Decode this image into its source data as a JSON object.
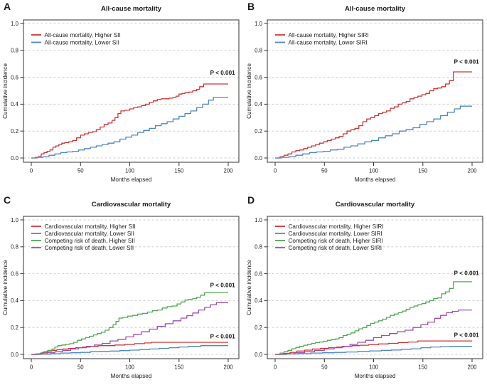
{
  "palette": {
    "background": "#ffffff",
    "axis": "#333333",
    "grid": "#cdcdcd",
    "text": "#1a1a1a",
    "red": "#d13434",
    "blue": "#4d86c3",
    "green": "#4fa84f",
    "purple": "#9a4fae"
  },
  "chart_data": [
    {
      "panel": "A",
      "type": "line",
      "step": true,
      "title": "All-cause mortality",
      "xlabel": "Months elapsed",
      "ylabel": "Cumulative incidence",
      "xlim": [
        0,
        210
      ],
      "ylim": [
        0,
        1.0
      ],
      "xticks": [
        0,
        50,
        100,
        150,
        200
      ],
      "yticks": [
        0.0,
        0.2,
        0.4,
        0.6,
        0.8,
        1.0
      ],
      "grid": "horizontal-dashed",
      "legend_position": "top-left",
      "annotations": [
        {
          "text": "P < 0.001",
          "x": 207,
          "y": 0.62
        }
      ],
      "series": [
        {
          "name": "All-cause mortality, Higher SII",
          "color": "#d13434",
          "x": [
            0,
            4,
            7,
            10,
            13,
            16,
            19,
            22,
            25,
            28,
            31,
            34,
            38,
            42,
            46,
            50,
            54,
            58,
            62,
            66,
            70,
            74,
            78,
            82,
            85,
            88,
            91,
            95,
            100,
            104,
            108,
            112,
            116,
            120,
            124,
            128,
            132,
            136,
            140,
            144,
            147,
            150,
            153,
            156,
            160,
            164,
            168,
            171,
            175,
            200
          ],
          "y": [
            0,
            0.005,
            0.01,
            0.03,
            0.04,
            0.05,
            0.06,
            0.08,
            0.09,
            0.1,
            0.11,
            0.115,
            0.12,
            0.13,
            0.15,
            0.17,
            0.18,
            0.19,
            0.195,
            0.21,
            0.23,
            0.25,
            0.26,
            0.28,
            0.3,
            0.33,
            0.35,
            0.355,
            0.365,
            0.375,
            0.38,
            0.39,
            0.4,
            0.415,
            0.425,
            0.435,
            0.44,
            0.44,
            0.445,
            0.45,
            0.46,
            0.475,
            0.48,
            0.485,
            0.49,
            0.5,
            0.51,
            0.53,
            0.55,
            0.55
          ]
        },
        {
          "name": "All-cause mortality, Lower SII",
          "color": "#4d86c3",
          "x": [
            0,
            6,
            12,
            18,
            24,
            30,
            36,
            42,
            48,
            54,
            60,
            66,
            72,
            78,
            84,
            90,
            96,
            102,
            108,
            114,
            120,
            126,
            132,
            138,
            144,
            150,
            156,
            162,
            168,
            174,
            180,
            185,
            200
          ],
          "y": [
            0,
            0.005,
            0.01,
            0.02,
            0.03,
            0.04,
            0.045,
            0.05,
            0.06,
            0.07,
            0.08,
            0.09,
            0.1,
            0.11,
            0.12,
            0.14,
            0.155,
            0.17,
            0.19,
            0.205,
            0.22,
            0.24,
            0.255,
            0.27,
            0.29,
            0.31,
            0.33,
            0.35,
            0.375,
            0.4,
            0.43,
            0.45,
            0.45
          ]
        }
      ]
    },
    {
      "panel": "B",
      "type": "line",
      "step": true,
      "title": "All-cause mortality",
      "xlabel": "Months elapsed",
      "ylabel": "Cumulative incidence",
      "xlim": [
        0,
        210
      ],
      "ylim": [
        0,
        1.0
      ],
      "xticks": [
        0,
        50,
        100,
        150,
        200
      ],
      "yticks": [
        0.0,
        0.2,
        0.4,
        0.6,
        0.8,
        1.0
      ],
      "grid": "horizontal-dashed",
      "legend_position": "top-left",
      "annotations": [
        {
          "text": "P < 0.001",
          "x": 207,
          "y": 0.7
        }
      ],
      "series": [
        {
          "name": "All-cause mortality, Higher SIRI",
          "color": "#d13434",
          "x": [
            0,
            5,
            9,
            13,
            17,
            21,
            25,
            29,
            33,
            37,
            41,
            45,
            49,
            53,
            57,
            61,
            65,
            69,
            73,
            77,
            81,
            85,
            89,
            93,
            97,
            101,
            105,
            109,
            113,
            117,
            121,
            125,
            129,
            133,
            137,
            141,
            145,
            149,
            153,
            157,
            161,
            165,
            169,
            173,
            177,
            181,
            200
          ],
          "y": [
            0,
            0.01,
            0.02,
            0.03,
            0.045,
            0.055,
            0.06,
            0.07,
            0.08,
            0.09,
            0.1,
            0.11,
            0.12,
            0.13,
            0.14,
            0.15,
            0.16,
            0.18,
            0.2,
            0.21,
            0.22,
            0.24,
            0.27,
            0.29,
            0.3,
            0.315,
            0.33,
            0.34,
            0.35,
            0.37,
            0.38,
            0.4,
            0.41,
            0.42,
            0.44,
            0.45,
            0.46,
            0.47,
            0.48,
            0.5,
            0.515,
            0.52,
            0.53,
            0.55,
            0.575,
            0.64,
            0.64
          ]
        },
        {
          "name": "All-cause mortality, Lower SIRI",
          "color": "#4d86c3",
          "x": [
            0,
            7,
            14,
            21,
            28,
            35,
            42,
            49,
            56,
            63,
            70,
            77,
            84,
            91,
            98,
            105,
            112,
            119,
            126,
            133,
            140,
            147,
            154,
            161,
            168,
            175,
            182,
            188,
            200
          ],
          "y": [
            0,
            0.005,
            0.01,
            0.02,
            0.03,
            0.04,
            0.045,
            0.05,
            0.06,
            0.065,
            0.08,
            0.09,
            0.105,
            0.12,
            0.13,
            0.15,
            0.165,
            0.18,
            0.2,
            0.21,
            0.225,
            0.25,
            0.27,
            0.29,
            0.315,
            0.34,
            0.365,
            0.385,
            0.385
          ]
        }
      ]
    },
    {
      "panel": "C",
      "type": "line",
      "step": true,
      "title": "Cardiovascular mortality",
      "xlabel": "Months elapsed",
      "ylabel": "Cumulative incidence",
      "xlim": [
        0,
        210
      ],
      "ylim": [
        0,
        1.0
      ],
      "xticks": [
        0,
        50,
        100,
        150,
        200
      ],
      "yticks": [
        0.0,
        0.2,
        0.4,
        0.6,
        0.8,
        1.0
      ],
      "grid": "horizontal-dashed",
      "legend_position": "top-left",
      "annotations": [
        {
          "text": "P < 0.001",
          "x": 207,
          "y": 0.5
        },
        {
          "text": "P < 0.001",
          "x": 207,
          "y": 0.12
        }
      ],
      "series": [
        {
          "name": "Cardiovascular mortality, Higher SII",
          "color": "#d13434",
          "x": [
            0,
            6,
            11,
            16,
            21,
            26,
            32,
            38,
            45,
            52,
            60,
            68,
            76,
            85,
            95,
            105,
            115,
            122,
            200
          ],
          "y": [
            0,
            0.005,
            0.015,
            0.025,
            0.03,
            0.035,
            0.04,
            0.045,
            0.05,
            0.055,
            0.06,
            0.065,
            0.065,
            0.07,
            0.075,
            0.08,
            0.085,
            0.09,
            0.09
          ]
        },
        {
          "name": "Cardiovascular mortality, Lower SII",
          "color": "#4d86c3",
          "x": [
            0,
            10,
            20,
            30,
            40,
            50,
            60,
            70,
            80,
            90,
            100,
            110,
            120,
            130,
            140,
            150,
            160,
            172,
            200
          ],
          "y": [
            0,
            0.002,
            0.005,
            0.01,
            0.012,
            0.015,
            0.02,
            0.022,
            0.025,
            0.028,
            0.032,
            0.036,
            0.04,
            0.045,
            0.05,
            0.055,
            0.06,
            0.065,
            0.065
          ]
        },
        {
          "name": "Competing risk of death, Higher SII",
          "color": "#4fa84f",
          "x": [
            0,
            5,
            9,
            13,
            17,
            21,
            24,
            27,
            31,
            35,
            39,
            43,
            47,
            51,
            55,
            59,
            63,
            67,
            71,
            75,
            79,
            83,
            86,
            89,
            93,
            98,
            103,
            108,
            113,
            118,
            123,
            128,
            133,
            138,
            143,
            148,
            152,
            156,
            160,
            164,
            168,
            172,
            176,
            200
          ],
          "y": [
            0,
            0.005,
            0.01,
            0.02,
            0.03,
            0.04,
            0.055,
            0.065,
            0.07,
            0.075,
            0.08,
            0.09,
            0.105,
            0.115,
            0.125,
            0.135,
            0.145,
            0.155,
            0.165,
            0.18,
            0.2,
            0.22,
            0.245,
            0.27,
            0.275,
            0.285,
            0.29,
            0.3,
            0.305,
            0.315,
            0.325,
            0.33,
            0.345,
            0.355,
            0.36,
            0.375,
            0.39,
            0.405,
            0.41,
            0.415,
            0.425,
            0.44,
            0.46,
            0.46
          ]
        },
        {
          "name": "Competing risk of death, Lower SII",
          "color": "#9a4fae",
          "x": [
            0,
            8,
            16,
            24,
            32,
            40,
            48,
            56,
            64,
            72,
            80,
            88,
            96,
            104,
            112,
            120,
            128,
            136,
            144,
            152,
            158,
            164,
            170,
            176,
            182,
            188,
            200
          ],
          "y": [
            0,
            0.005,
            0.012,
            0.02,
            0.03,
            0.04,
            0.05,
            0.06,
            0.07,
            0.082,
            0.1,
            0.112,
            0.13,
            0.15,
            0.168,
            0.188,
            0.208,
            0.228,
            0.25,
            0.27,
            0.288,
            0.308,
            0.33,
            0.35,
            0.37,
            0.385,
            0.385
          ]
        }
      ]
    },
    {
      "panel": "D",
      "type": "line",
      "step": true,
      "title": "Cardiovascular mortality",
      "xlabel": "Months elapsed",
      "ylabel": "Cumulative incidence",
      "xlim": [
        0,
        210
      ],
      "ylim": [
        0,
        1.0
      ],
      "xticks": [
        0,
        50,
        100,
        150,
        200
      ],
      "yticks": [
        0.0,
        0.2,
        0.4,
        0.6,
        0.8,
        1.0
      ],
      "grid": "horizontal-dashed",
      "legend_position": "top-left",
      "annotations": [
        {
          "text": "P < 0.001",
          "x": 207,
          "y": 0.59
        },
        {
          "text": "P < 0.001",
          "x": 207,
          "y": 0.13
        }
      ],
      "series": [
        {
          "name": "Cardiovascular mortality, Higher SIRI",
          "color": "#d13434",
          "x": [
            0,
            8,
            15,
            22,
            30,
            38,
            46,
            54,
            62,
            70,
            78,
            86,
            95,
            105,
            115,
            125,
            135,
            145,
            200
          ],
          "y": [
            0,
            0.008,
            0.015,
            0.025,
            0.032,
            0.04,
            0.045,
            0.05,
            0.055,
            0.06,
            0.065,
            0.068,
            0.072,
            0.078,
            0.082,
            0.088,
            0.092,
            0.1,
            0.1
          ]
        },
        {
          "name": "Cardiovascular mortality, Lower SIRI",
          "color": "#4d86c3",
          "x": [
            0,
            12,
            24,
            36,
            48,
            60,
            72,
            84,
            96,
            108,
            118,
            128,
            138,
            148,
            158,
            168,
            178,
            200
          ],
          "y": [
            0,
            0.003,
            0.006,
            0.01,
            0.012,
            0.015,
            0.018,
            0.022,
            0.026,
            0.03,
            0.033,
            0.038,
            0.042,
            0.05,
            0.055,
            0.058,
            0.06,
            0.06
          ]
        },
        {
          "name": "Competing risk of death, Higher SIRI",
          "color": "#4fa84f",
          "x": [
            0,
            5,
            9,
            13,
            17,
            21,
            25,
            29,
            33,
            37,
            41,
            45,
            49,
            53,
            57,
            61,
            65,
            69,
            73,
            77,
            81,
            85,
            89,
            93,
            97,
            101,
            105,
            109,
            113,
            117,
            121,
            125,
            129,
            133,
            137,
            141,
            145,
            149,
            153,
            157,
            161,
            165,
            169,
            173,
            177,
            181,
            200
          ],
          "y": [
            0,
            0.01,
            0.02,
            0.03,
            0.042,
            0.052,
            0.06,
            0.068,
            0.075,
            0.082,
            0.088,
            0.092,
            0.098,
            0.105,
            0.11,
            0.115,
            0.125,
            0.14,
            0.15,
            0.16,
            0.175,
            0.19,
            0.2,
            0.215,
            0.23,
            0.24,
            0.25,
            0.262,
            0.275,
            0.29,
            0.3,
            0.31,
            0.322,
            0.335,
            0.35,
            0.36,
            0.37,
            0.378,
            0.39,
            0.4,
            0.415,
            0.42,
            0.45,
            0.465,
            0.49,
            0.54,
            0.54
          ]
        },
        {
          "name": "Competing risk of death, Lower SIRI",
          "color": "#9a4fae",
          "x": [
            0,
            10,
            20,
            30,
            40,
            50,
            60,
            68,
            76,
            84,
            92,
            100,
            108,
            116,
            124,
            132,
            140,
            148,
            155,
            162,
            168,
            174,
            180,
            186,
            200
          ],
          "y": [
            0,
            0.005,
            0.012,
            0.02,
            0.03,
            0.04,
            0.05,
            0.06,
            0.075,
            0.09,
            0.105,
            0.125,
            0.14,
            0.155,
            0.168,
            0.18,
            0.2,
            0.22,
            0.24,
            0.268,
            0.29,
            0.31,
            0.32,
            0.33,
            0.33
          ]
        }
      ]
    }
  ]
}
